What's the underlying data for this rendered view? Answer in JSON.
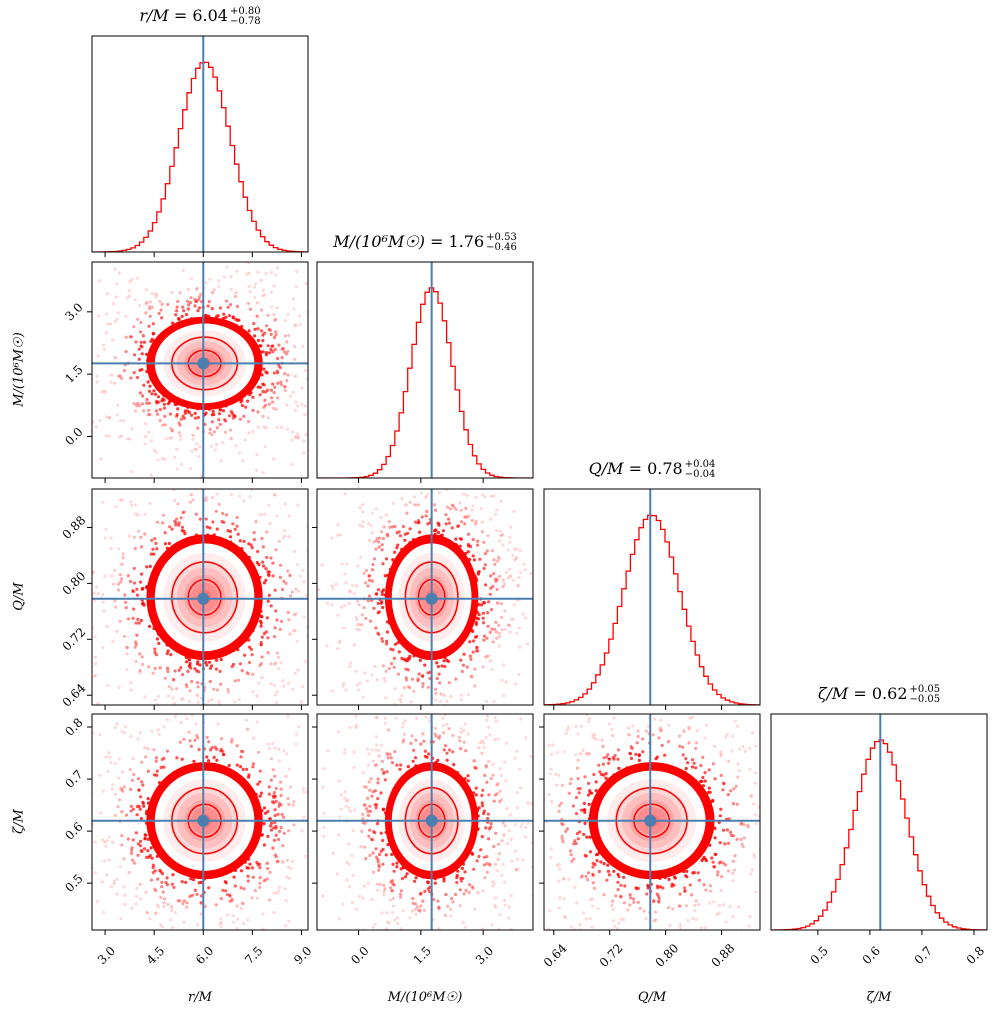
{
  "colors": {
    "posterior": "#ff0000",
    "truth": "#4a7fb0",
    "axes": "#000000"
  },
  "parameters": [
    {
      "name": "r",
      "label": "r/M",
      "truth": 6.0,
      "range": [
        2.6,
        9.2
      ],
      "ticks": [
        3.0,
        4.5,
        6.0,
        7.5,
        9.0
      ],
      "tick_labels": [
        "3.0",
        "4.5",
        "6.0",
        "7.5",
        "9.0"
      ],
      "median": "6.04",
      "plus": "+0.80",
      "minus": "−0.78",
      "mu": 6.04,
      "sigma": 0.79
    },
    {
      "name": "mass",
      "label": "M/(10⁶M☉)",
      "truth": 1.76,
      "range": [
        -1.0,
        4.2
      ],
      "ticks": [
        0.0,
        1.5,
        3.0
      ],
      "tick_labels": [
        "0.0",
        "1.5",
        "3.0"
      ],
      "median": "1.76",
      "plus": "+0.53",
      "minus": "−0.46",
      "mu": 1.76,
      "sigma": 0.5
    },
    {
      "name": "Q",
      "label": "Q/M",
      "truth": 0.778,
      "range": [
        0.626,
        0.935
      ],
      "ticks": [
        0.64,
        0.72,
        0.8,
        0.88
      ],
      "tick_labels": [
        "0.64",
        "0.72",
        "0.80",
        "0.88"
      ],
      "median": "0.78",
      "plus": "+0.04",
      "minus": "−0.04",
      "mu": 0.78,
      "sigma": 0.04
    },
    {
      "name": "zeta",
      "label": "ζ/M",
      "truth": 0.62,
      "range": [
        0.41,
        0.825
      ],
      "ticks": [
        0.5,
        0.6,
        0.7,
        0.8
      ],
      "tick_labels": [
        "0.5",
        "0.6",
        "0.7",
        "0.8"
      ],
      "median": "0.62",
      "plus": "+0.05",
      "minus": "−0.05",
      "mu": 0.62,
      "sigma": 0.05
    }
  ],
  "chart_data": {
    "type": "corner",
    "title": "",
    "variables": [
      "r/M",
      "M/(10⁶M☉)",
      "Q/M",
      "ζ/M"
    ],
    "marginal_titles": [
      "r/M = 6.04 +0.80 −0.78",
      "M/(10⁶M☉) = 1.76 +0.53 −0.46",
      "Q/M = 0.78 +0.04 −0.04",
      "ζ/M = 0.62 +0.05 −0.05"
    ],
    "truth_values": [
      6.0,
      1.76,
      0.778,
      0.62
    ],
    "axis_ranges": [
      [
        2.6,
        9.2
      ],
      [
        -1.0,
        4.2
      ],
      [
        0.626,
        0.935
      ],
      [
        0.41,
        0.825
      ]
    ],
    "histogram_bins": 50,
    "contour_levels": 3,
    "grid": false,
    "legend": "none"
  }
}
